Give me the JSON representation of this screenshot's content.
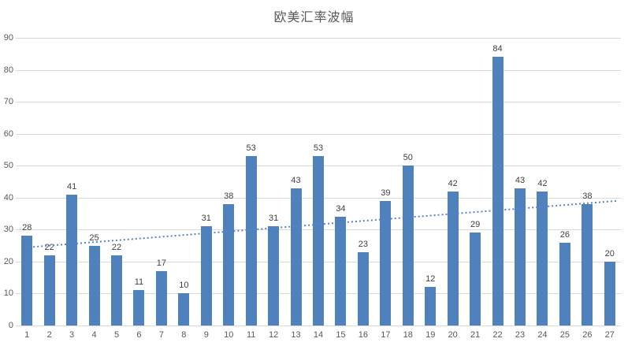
{
  "chart_data": {
    "type": "bar",
    "title": "欧美汇率波幅",
    "categories": [
      "1",
      "2",
      "3",
      "4",
      "5",
      "6",
      "7",
      "8",
      "9",
      "10",
      "11",
      "12",
      "13",
      "14",
      "15",
      "16",
      "17",
      "18",
      "19",
      "20",
      "21",
      "22",
      "23",
      "24",
      "25",
      "26",
      "27"
    ],
    "values": [
      28,
      22,
      41,
      25,
      22,
      11,
      17,
      10,
      31,
      38,
      53,
      31,
      43,
      53,
      34,
      23,
      39,
      50,
      12,
      42,
      29,
      84,
      43,
      42,
      26,
      38,
      20
    ],
    "xlabel": "",
    "ylabel": "",
    "ylim": [
      0,
      90
    ],
    "yticks": [
      0,
      10,
      20,
      30,
      40,
      50,
      60,
      70,
      80,
      90
    ],
    "grid": true,
    "legend": false,
    "data_labels": true,
    "colors": {
      "bar": "#4f81bd",
      "trendline": "#5585c8",
      "gridline": "#d9d9d9",
      "axis_text": "#595959",
      "data_label_text": "#404040",
      "title_text": "#595959",
      "background": "#ffffff"
    },
    "trendline": {
      "type": "linear",
      "style": "dotted",
      "start_value": 24.4,
      "end_value": 39
    }
  }
}
